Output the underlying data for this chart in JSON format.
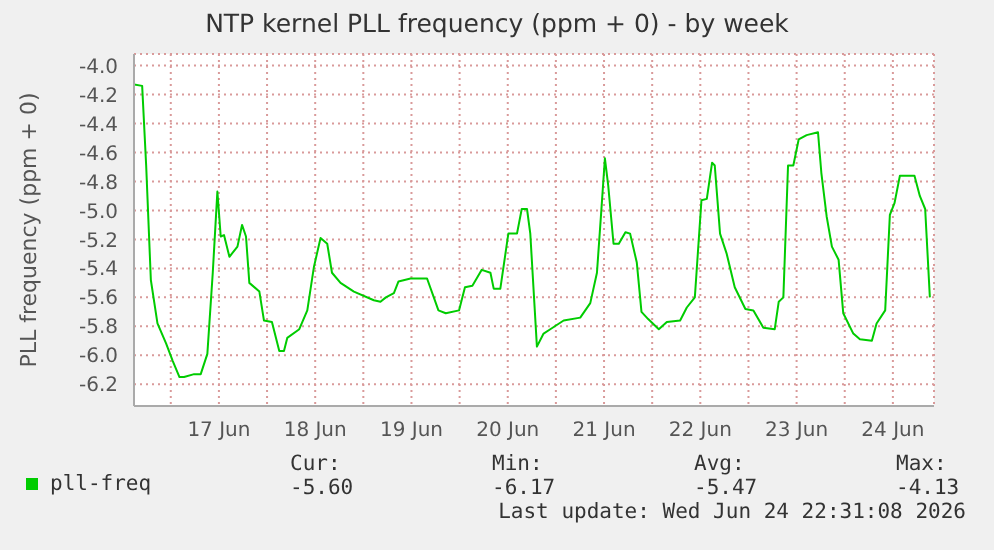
{
  "chart_data": {
    "type": "line",
    "title": "NTP kernel PLL frequency (ppm + 0) - by week",
    "ylabel": "PLL frequency (ppm + 0)",
    "x": [
      "2026-06-16T14:53",
      "2026-06-16T16:52",
      "2026-06-16T17:52",
      "2026-06-16T19:02",
      "2026-06-16T20:41",
      "2026-06-16T22:51",
      "2026-06-17T00:30",
      "2026-06-17T02:10",
      "2026-06-17T03:19",
      "2026-06-17T05:49",
      "2026-06-17T07:28",
      "2026-06-17T09:07",
      "2026-06-17T10:28",
      "2026-06-17T11:37",
      "2026-06-17T12:27",
      "2026-06-17T13:16",
      "2026-06-17T14:37",
      "2026-06-17T16:37",
      "2026-06-17T17:46",
      "2026-06-17T18:45",
      "2026-06-17T19:35",
      "2026-06-17T22:05",
      "2026-06-17T23:14",
      "2026-06-18T01:13",
      "2026-06-18T03:03",
      "2026-06-18T04:13",
      "2026-06-18T05:02",
      "2026-06-18T08:02",
      "2026-06-18T10:02",
      "2026-06-18T11:41",
      "2026-06-18T13:20",
      "2026-06-18T15:00",
      "2026-06-18T16:11",
      "2026-06-18T18:19",
      "2026-06-18T21:39",
      "2026-06-19T02:37",
      "2026-06-19T04:16",
      "2026-06-19T05:37",
      "2026-06-19T07:37",
      "2026-06-19T08:46",
      "2026-06-19T11:46",
      "2026-06-19T15:53",
      "2026-06-19T17:34",
      "2026-06-19T18:43",
      "2026-06-19T20:33",
      "2026-06-19T23:51",
      "2026-06-20T01:20",
      "2026-06-20T03:11",
      "2026-06-20T05:31",
      "2026-06-20T07:41",
      "2026-06-20T08:30",
      "2026-06-20T10:09",
      "2026-06-20T12:09",
      "2026-06-20T14:18",
      "2026-06-20T15:29",
      "2026-06-20T16:48",
      "2026-06-20T17:37",
      "2026-06-20T19:16",
      "2026-06-20T20:56",
      "2026-06-20T22:36",
      "2026-06-21T01:56",
      "2026-06-21T06:04",
      "2026-06-21T08:34",
      "2026-06-21T10:14",
      "2026-06-21T11:24",
      "2026-06-21T12:13",
      "2026-06-21T13:03",
      "2026-06-21T14:22",
      "2026-06-21T15:41",
      "2026-06-21T17:20",
      "2026-06-21T18:30",
      "2026-06-21T20:10",
      "2026-06-21T21:20",
      "2026-06-21T23:00",
      "2026-06-22T01:39",
      "2026-06-22T03:39",
      "2026-06-22T06:58",
      "2026-06-22T08:38",
      "2026-06-22T10:38",
      "2026-06-22T12:17",
      "2026-06-22T13:37",
      "2026-06-22T14:56",
      "2026-06-22T15:36",
      "2026-06-22T16:55",
      "2026-06-22T18:35",
      "2026-06-22T20:35",
      "2026-06-22T23:14",
      "2026-06-23T01:14",
      "2026-06-23T03:43",
      "2026-06-23T06:33",
      "2026-06-23T07:33",
      "2026-06-23T08:42",
      "2026-06-23T09:52",
      "2026-06-23T11:11",
      "2026-06-23T12:31",
      "2026-06-23T14:30",
      "2026-06-23T17:20",
      "2026-06-23T18:10",
      "2026-06-23T19:29",
      "2026-06-23T20:48",
      "2026-06-23T22:28",
      "2026-06-23T23:38",
      "2026-06-24T02:08",
      "2026-06-24T03:47",
      "2026-06-24T06:46",
      "2026-06-24T07:56",
      "2026-06-24T10:05",
      "2026-06-24T11:15",
      "2026-06-24T12:24",
      "2026-06-24T13:45",
      "2026-06-24T17:23",
      "2026-06-24T18:43",
      "2026-06-24T20:03",
      "2026-06-24T21:13"
    ],
    "series": [
      {
        "name": "pll-freq",
        "color": "#00cc00",
        "values": [
          -4.13,
          -4.14,
          -4.69,
          -5.48,
          -5.78,
          -5.92,
          -6.04,
          -6.15,
          -6.15,
          -6.13,
          -6.13,
          -5.99,
          -5.43,
          -4.87,
          -5.18,
          -5.17,
          -5.32,
          -5.25,
          -5.1,
          -5.18,
          -5.5,
          -5.56,
          -5.76,
          -5.77,
          -5.97,
          -5.97,
          -5.88,
          -5.82,
          -5.69,
          -5.39,
          -5.19,
          -5.23,
          -5.43,
          -5.5,
          -5.56,
          -5.62,
          -5.63,
          -5.6,
          -5.57,
          -5.49,
          -5.47,
          -5.47,
          -5.6,
          -5.69,
          -5.71,
          -5.69,
          -5.53,
          -5.52,
          -5.41,
          -5.43,
          -5.54,
          -5.54,
          -5.16,
          -5.16,
          -4.99,
          -4.99,
          -5.16,
          -5.94,
          -5.85,
          -5.82,
          -5.76,
          -5.74,
          -5.64,
          -5.43,
          -4.97,
          -4.64,
          -4.83,
          -5.23,
          -5.23,
          -5.15,
          -5.16,
          -5.36,
          -5.7,
          -5.75,
          -5.82,
          -5.77,
          -5.76,
          -5.67,
          -5.6,
          -4.93,
          -4.92,
          -4.67,
          -4.69,
          -5.16,
          -5.3,
          -5.53,
          -5.68,
          -5.69,
          -5.81,
          -5.82,
          -5.63,
          -5.6,
          -4.69,
          -4.69,
          -4.51,
          -4.48,
          -4.46,
          -4.74,
          -5.04,
          -5.25,
          -5.34,
          -5.71,
          -5.85,
          -5.89,
          -5.9,
          -5.78,
          -5.69,
          -5.03,
          -4.95,
          -4.76,
          -4.76,
          -4.9,
          -4.99,
          -5.6
        ]
      }
    ],
    "xlim": [
      "2026-06-16T14:50",
      "2026-06-24T22:15"
    ],
    "xticks": [
      {
        "value": "2026-06-17T00:00",
        "label": null
      },
      {
        "value": "2026-06-17T12:00",
        "label": "17 Jun"
      },
      {
        "value": "2026-06-18T00:00",
        "label": null
      },
      {
        "value": "2026-06-18T12:00",
        "label": "18 Jun"
      },
      {
        "value": "2026-06-19T00:00",
        "label": null
      },
      {
        "value": "2026-06-19T12:00",
        "label": "19 Jun"
      },
      {
        "value": "2026-06-20T00:00",
        "label": null
      },
      {
        "value": "2026-06-20T12:00",
        "label": "20 Jun"
      },
      {
        "value": "2026-06-21T00:00",
        "label": null
      },
      {
        "value": "2026-06-21T12:00",
        "label": "21 Jun"
      },
      {
        "value": "2026-06-22T00:00",
        "label": null
      },
      {
        "value": "2026-06-22T12:00",
        "label": "22 Jun"
      },
      {
        "value": "2026-06-23T00:00",
        "label": null
      },
      {
        "value": "2026-06-23T12:00",
        "label": "23 Jun"
      },
      {
        "value": "2026-06-24T00:00",
        "label": null
      },
      {
        "value": "2026-06-24T12:00",
        "label": "24 Jun"
      }
    ],
    "ylim": [
      -6.35,
      -3.92
    ],
    "yticks": [
      -6.2,
      {
        "value": -6,
        "label": "-6.0"
      },
      -5.8,
      -5.6,
      -5.4,
      -5.2,
      {
        "value": -5,
        "label": "-5.0"
      },
      -4.8,
      -4.6,
      -4.4,
      -4.2,
      {
        "value": -4,
        "label": "-4.0"
      }
    ],
    "grid": true,
    "legend": "bottom left",
    "annotations": [
      "Cur:",
      "Min:",
      "Avg:",
      "Max:",
      "-5.60",
      "-6.17",
      "-5.47",
      "-4.13",
      "Last update: Wed Jun 24 22:31:08 2026"
    ]
  }
}
